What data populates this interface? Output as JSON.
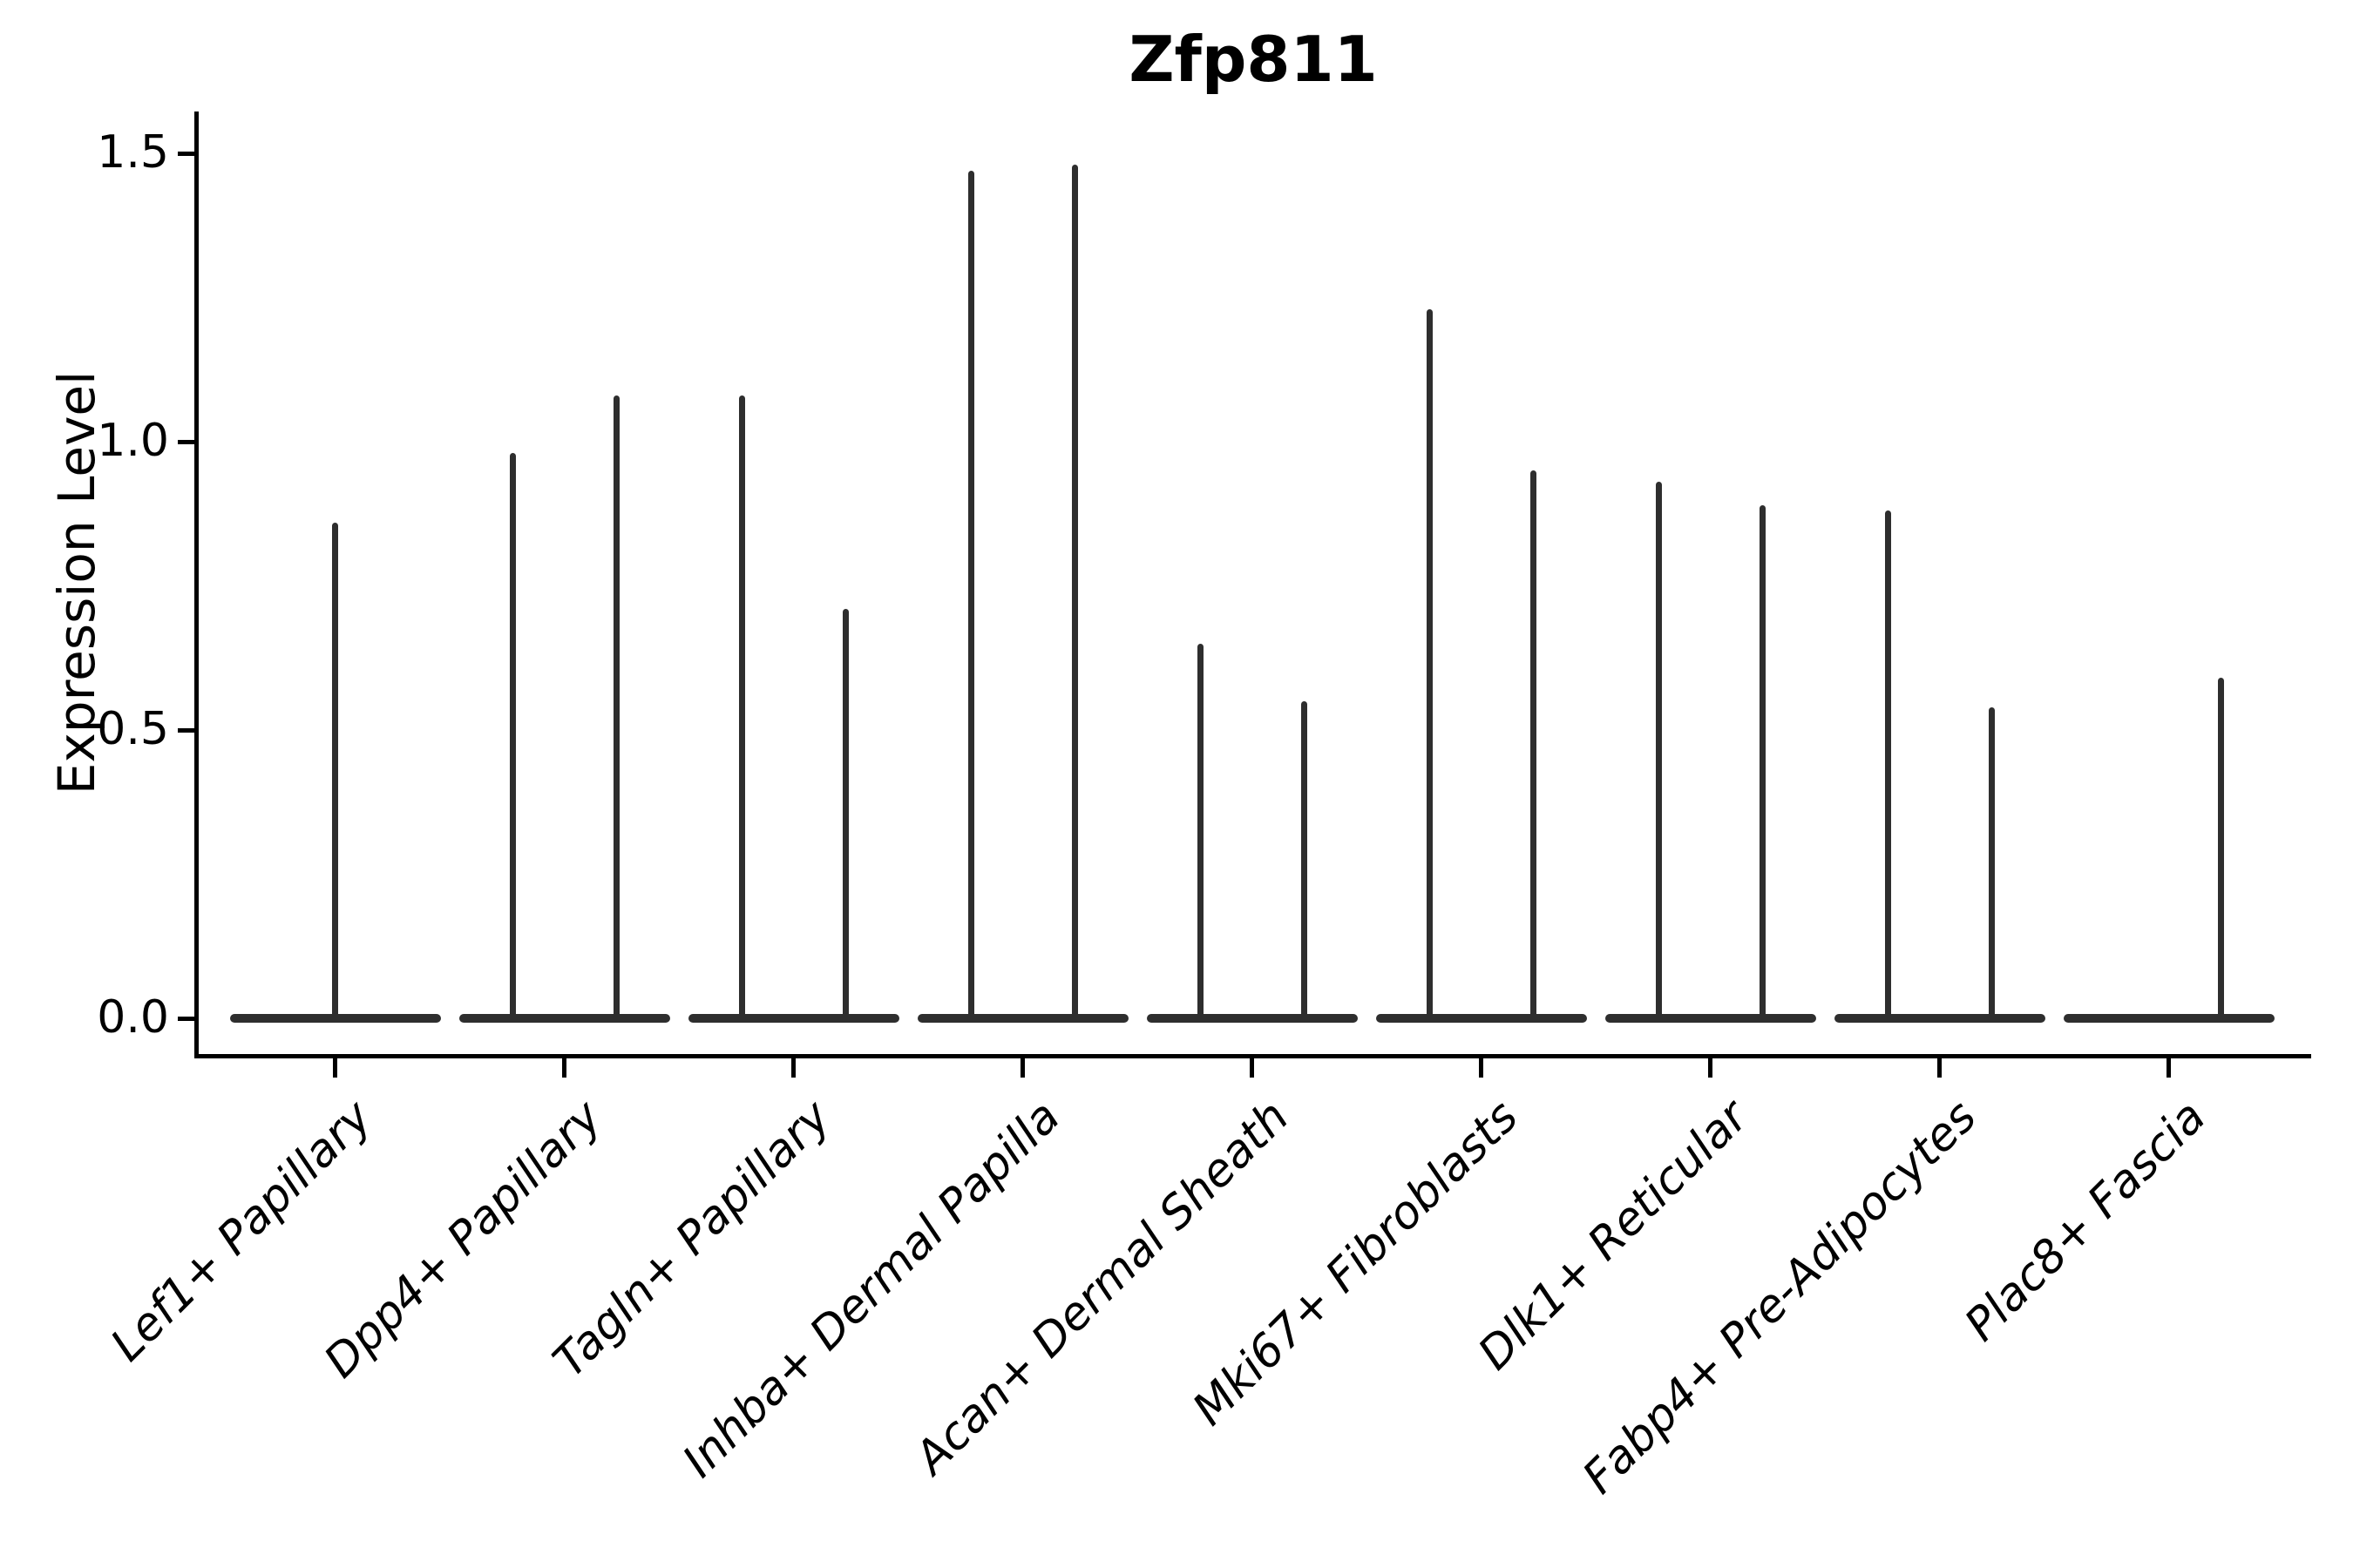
{
  "chart_data": {
    "type": "violin",
    "title": "Zfp811",
    "xlabel": "",
    "ylabel": "Expression Level",
    "ylim": [
      -0.06,
      1.57
    ],
    "grid": false,
    "legend": null,
    "violin_color": "#2e2e2e",
    "axis_color": "#000000",
    "yticks": [
      {
        "value": 0.0,
        "label": "0.0"
      },
      {
        "value": 0.5,
        "label": "0.5"
      },
      {
        "value": 1.0,
        "label": "1.0"
      },
      {
        "value": 1.5,
        "label": "1.5"
      }
    ],
    "violin_shape_note": "each violin is flattened at 0 (wide base) with a thin vertical tail rising to its max expression value",
    "groups": [
      {
        "label": "Lef1+ Papillary",
        "violins": [
          {
            "pos": "center",
            "max": 0.86
          }
        ]
      },
      {
        "label": "Dpp4+ Papillary",
        "violins": [
          {
            "pos": "left",
            "max": 0.98
          },
          {
            "pos": "right",
            "max": 1.08
          }
        ]
      },
      {
        "label": "Tagln+ Papillary",
        "violins": [
          {
            "pos": "left",
            "max": 1.08
          },
          {
            "pos": "right",
            "max": 0.71
          }
        ]
      },
      {
        "label": "Inhba+ Dermal Papilla",
        "violins": [
          {
            "pos": "left",
            "max": 1.47
          },
          {
            "pos": "right",
            "max": 1.48
          }
        ]
      },
      {
        "label": "Acan+ Dermal Sheath",
        "violins": [
          {
            "pos": "left",
            "max": 0.65
          },
          {
            "pos": "right",
            "max": 0.55
          }
        ]
      },
      {
        "label": "Mki67+ Fibroblasts",
        "violins": [
          {
            "pos": "left",
            "max": 1.23
          },
          {
            "pos": "right",
            "max": 0.95
          }
        ]
      },
      {
        "label": "Dlk1+ Reticular",
        "violins": [
          {
            "pos": "left",
            "max": 0.93
          },
          {
            "pos": "right",
            "max": 0.89
          }
        ]
      },
      {
        "label": "Fabp4+ Pre-Adipocytes",
        "violins": [
          {
            "pos": "left",
            "max": 0.88
          },
          {
            "pos": "right",
            "max": 0.54
          }
        ]
      },
      {
        "label": "Plac8+ Fascia",
        "violins": [
          {
            "pos": "right",
            "max": 0.59
          }
        ]
      }
    ]
  }
}
